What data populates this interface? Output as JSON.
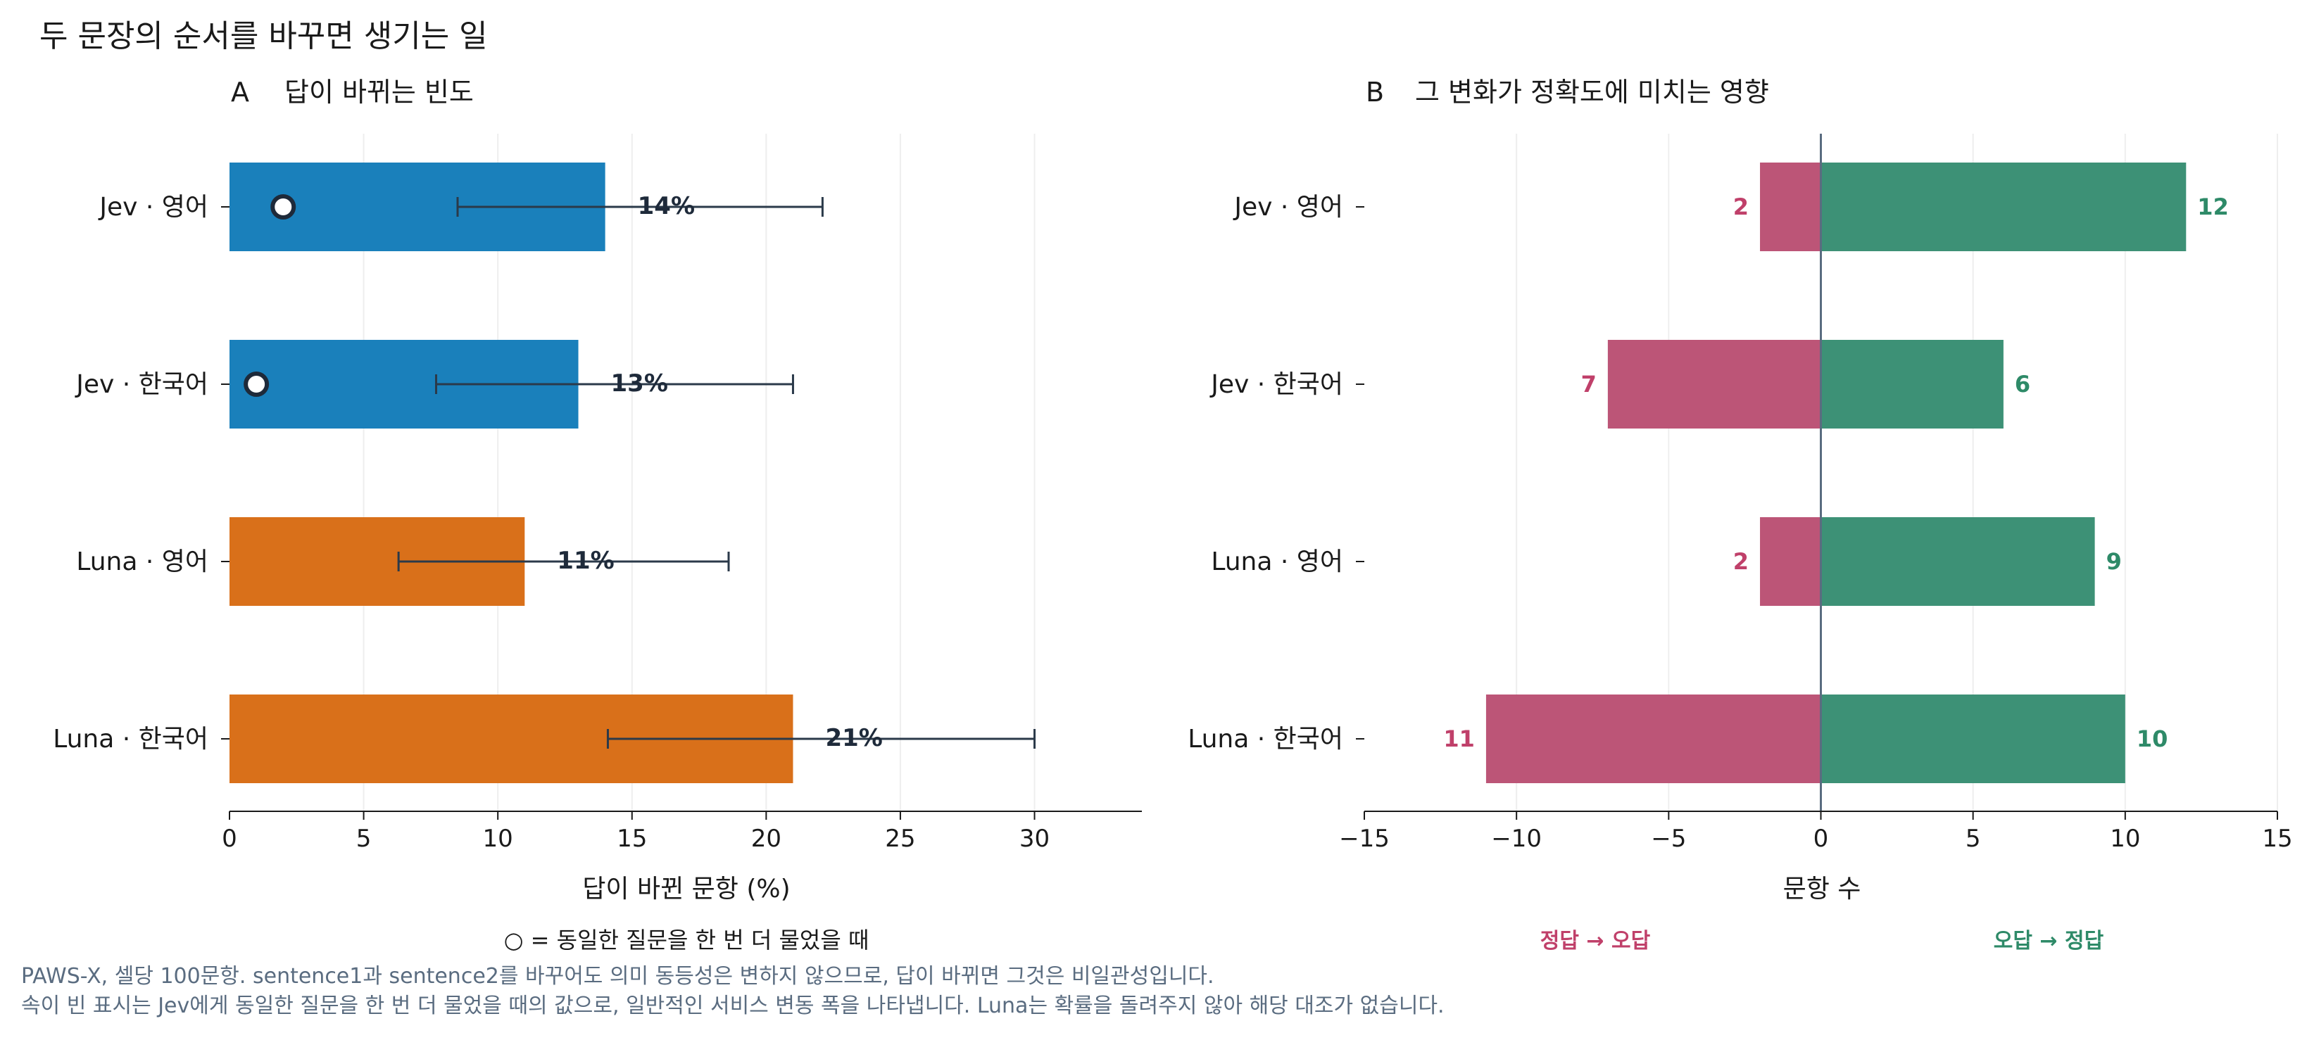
{
  "figure": {
    "title": "두 문장의 순서를 바꾸면 생기는 일",
    "footnote_lines": [
      "PAWS-X, 셀당 100문항. sentence1과 sentence2를 바꾸어도 의미 동등성은 변하지 않으므로, 답이 바뀌면 그것은 비일관성입니다.",
      "속이 빈 표시는 Jev에게 동일한 질문을 한 번 더 물었을 때의 값으로, 일반적인 서비스 변동 폭을 나타냅니다. Luna는 확률을 돌려주지 않아 해당 대조가 없습니다."
    ]
  },
  "colors": {
    "jev": "#1a80bb",
    "luna": "#d9701a",
    "errorbar": "#2b3a4a",
    "down": "#bc5577",
    "up": "#3d9176",
    "down_text": "#c0406a",
    "up_text": "#2e8a68",
    "grid": "#eeeeee",
    "footnote": "#5a6c80",
    "zero_line": "#5a6c80"
  },
  "chart_data": [
    {
      "panel": "A",
      "title": "답이 바뀌는 빈도",
      "type": "bar",
      "orientation": "horizontal",
      "categories": [
        "Jev · 영어",
        "Jev · 한국어",
        "Luna · 영어",
        "Luna · 한국어"
      ],
      "values": [
        14,
        13,
        11,
        21
      ],
      "value_labels": [
        "14%",
        "13%",
        "11%",
        "21%"
      ],
      "ci_low": [
        8.5,
        7.7,
        6.3,
        14.1
      ],
      "ci_high": [
        22.1,
        21.0,
        18.6,
        30.0
      ],
      "rerun_baseline": [
        2,
        1,
        null,
        null
      ],
      "xlabel": "답이 바뀐 문항 (%)",
      "xlim": [
        0,
        34
      ],
      "xticks": [
        0,
        5,
        10,
        15,
        20,
        25,
        30
      ],
      "grid": "vertical",
      "legend_note": "○ = 동일한 질문을 한 번 더 물었을 때"
    },
    {
      "panel": "B",
      "title": "그 변화가 정확도에 미치는 영향",
      "type": "bar",
      "orientation": "horizontal-diverging",
      "categories": [
        "Jev · 영어",
        "Jev · 한국어",
        "Luna · 영어",
        "Luna · 한국어"
      ],
      "series": [
        {
          "name": "정답 → 오답",
          "values": [
            -2,
            -7,
            -2,
            -11
          ],
          "labels": [
            "2",
            "7",
            "2",
            "11"
          ]
        },
        {
          "name": "오답 → 정답",
          "values": [
            12,
            6,
            9,
            10
          ],
          "labels": [
            "12",
            "6",
            "9",
            "10"
          ]
        }
      ],
      "xlabel": "문항 수",
      "xlim": [
        -15,
        15
      ],
      "xticks": [
        -15,
        -10,
        -5,
        0,
        5,
        10,
        15
      ],
      "xtick_labels": [
        "−15",
        "−10",
        "−5",
        "0",
        "5",
        "10",
        "15"
      ],
      "grid": "vertical"
    }
  ]
}
